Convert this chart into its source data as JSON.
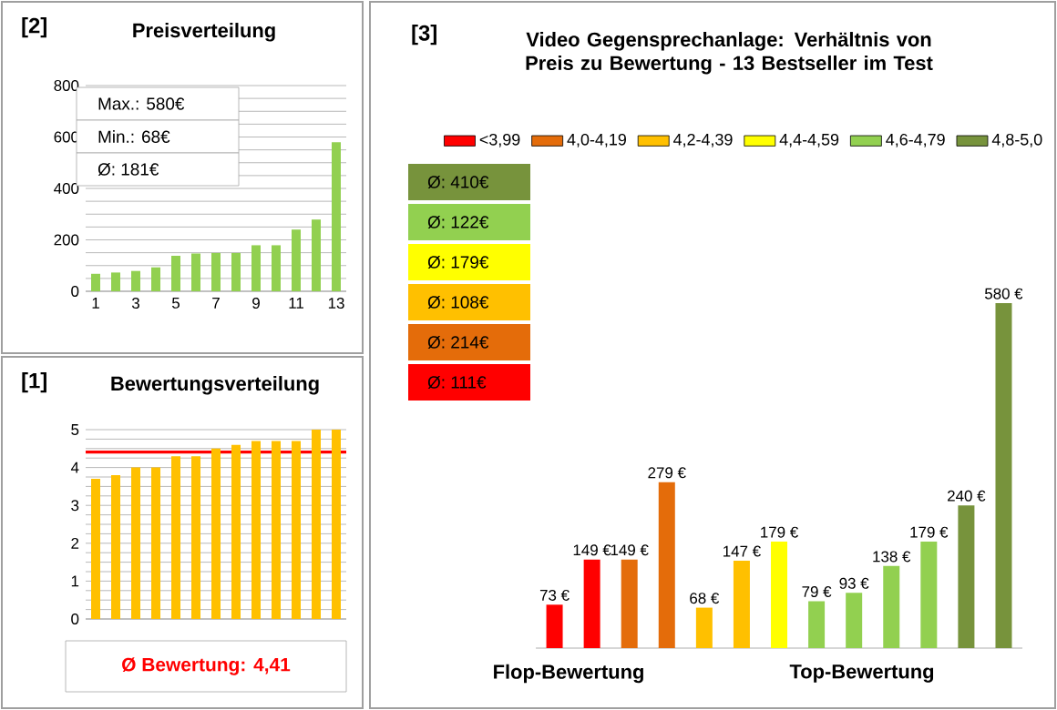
{
  "chart_data": [
    {
      "type": "bar",
      "title": "Preisverteilung",
      "annotations": [
        "[2]",
        "Max.: 580€",
        "Min.: 68€",
        "Ø: 181€"
      ],
      "categories": [
        "1",
        null,
        "3",
        null,
        "5",
        null,
        "7",
        null,
        "9",
        null,
        "11",
        null,
        "13"
      ],
      "values": [
        68,
        73,
        79,
        93,
        138,
        147,
        149,
        149,
        179,
        179,
        240,
        279,
        580
      ],
      "color": "#92d050",
      "ylim": [
        0,
        800
      ],
      "yticks": [
        0,
        200,
        400,
        600,
        800
      ],
      "grid": "y"
    },
    {
      "type": "bar",
      "title": "Bewertungsverteilung",
      "annotations": [
        "[1]"
      ],
      "categories": [
        null,
        null,
        null,
        null,
        null,
        null,
        null,
        null,
        null,
        null,
        null,
        null,
        null
      ],
      "values": [
        3.7,
        3.8,
        4.0,
        4.0,
        4.3,
        4.3,
        4.5,
        4.6,
        4.7,
        4.7,
        4.7,
        5.0,
        5.0
      ],
      "color": "#ffc000",
      "ylim": [
        0,
        5
      ],
      "yticks": [
        0,
        1,
        2,
        3,
        4,
        5
      ],
      "grid": "y",
      "tick_labels": "y",
      "ref_lines": [
        {
          "axis": "y",
          "value": 4.41,
          "label": "Ø Bewertung: 4,41",
          "color": "#ff0000"
        }
      ]
    },
    {
      "type": "bar",
      "title": "Video Gegensprechanlage: Verhältnis von Preis zu Bewertung - 13 Bestseller im Test",
      "annotations": [
        "[3]",
        "Ø: 410€",
        "Ø: 122€",
        "Ø: 179€",
        "Ø: 108€",
        "Ø: 214€",
        "Ø: 111€",
        "Flop-Bewertung",
        "Top-Bewertung"
      ],
      "categories": [
        null,
        null,
        null,
        null,
        null,
        null,
        null,
        null,
        null,
        null,
        null,
        null,
        null
      ],
      "tick_labels": false,
      "legend": "top",
      "stacked": true,
      "series": [
        {
          "name": "<3,99",
          "color": "#ff0000",
          "values": [
            73,
            149,
            null,
            null,
            null,
            null,
            null,
            null,
            null,
            null,
            null,
            null,
            null
          ],
          "value_labels": [
            "73 €",
            "149 €",
            null,
            null,
            null,
            null,
            null,
            null,
            null,
            null,
            null,
            null,
            null
          ]
        },
        {
          "name": "4,0-4,19",
          "color": "#e46c0a",
          "values": [
            null,
            null,
            149,
            279,
            null,
            null,
            null,
            null,
            null,
            null,
            null,
            null,
            null
          ],
          "value_labels": [
            null,
            null,
            "149 €",
            "279 €",
            null,
            null,
            null,
            null,
            null,
            null,
            null,
            null,
            null
          ]
        },
        {
          "name": "4,2-4,39",
          "color": "#ffc000",
          "values": [
            null,
            null,
            null,
            null,
            68,
            147,
            null,
            null,
            null,
            null,
            null,
            null,
            null
          ],
          "value_labels": [
            null,
            null,
            null,
            null,
            "68 €",
            "147 €",
            null,
            null,
            null,
            null,
            null,
            null,
            null
          ]
        },
        {
          "name": "4,4-4,59",
          "color": "#ffff00",
          "values": [
            null,
            null,
            null,
            null,
            null,
            null,
            179,
            null,
            null,
            null,
            null,
            null,
            null
          ],
          "value_labels": [
            null,
            null,
            null,
            null,
            null,
            null,
            "179 €",
            null,
            null,
            null,
            null,
            null,
            null
          ]
        },
        {
          "name": "4,6-4,79",
          "color": "#92d050",
          "values": [
            null,
            null,
            null,
            null,
            null,
            null,
            null,
            79,
            93,
            138,
            179,
            null,
            null
          ],
          "value_labels": [
            null,
            null,
            null,
            null,
            null,
            null,
            null,
            "79 €",
            "93 €",
            "138 €",
            "179 €",
            null,
            null
          ]
        },
        {
          "name": "4,8-5,0",
          "color": "#77933c",
          "values": [
            null,
            null,
            null,
            null,
            null,
            null,
            null,
            null,
            null,
            null,
            null,
            240,
            580
          ],
          "value_labels": [
            null,
            null,
            null,
            null,
            null,
            null,
            null,
            null,
            null,
            null,
            null,
            "240 €",
            "580 €"
          ]
        }
      ]
    }
  ]
}
